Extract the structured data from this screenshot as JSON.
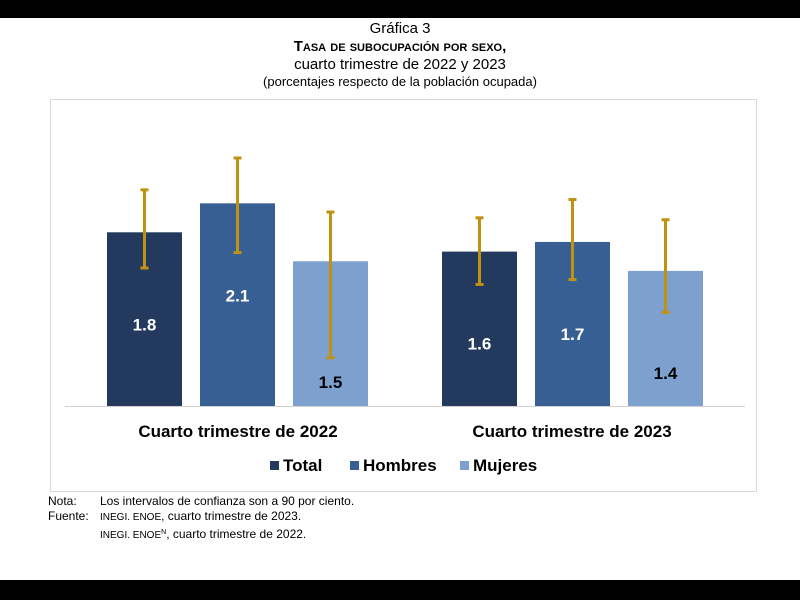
{
  "header": {
    "figure_label": "Gráfica 3",
    "title": "Tasa de subocupación por sexo,",
    "subtitle": "cuarto trimestre de 2022 y 2023",
    "units": "(porcentajes respecto de la población ocupada)"
  },
  "colors": {
    "total": "#233a5e",
    "hombres": "#375f93",
    "mujeres": "#7ea0cf",
    "error_bar": "#c09212",
    "label_light": "#ffffff",
    "label_dark": "#000000"
  },
  "chart_data": {
    "type": "bar",
    "title": "Tasa de subocupación por sexo, cuarto trimestre de 2022 y 2023",
    "subtitle": "(porcentajes respecto de la población ocupada)",
    "xlabel": "",
    "ylabel": "",
    "categories": [
      "Cuarto trimestre de 2022",
      "Cuarto trimestre de 2023"
    ],
    "series": [
      {
        "name": "Total",
        "values": [
          1.8,
          1.6
        ],
        "ci_low": [
          1.43,
          1.26
        ],
        "ci_high": [
          2.24,
          1.95
        ],
        "label_color": "light"
      },
      {
        "name": "Hombres",
        "values": [
          2.1,
          1.7
        ],
        "ci_low": [
          1.59,
          1.31
        ],
        "ci_high": [
          2.57,
          2.14
        ],
        "label_color": "light"
      },
      {
        "name": "Mujeres",
        "values": [
          1.5,
          1.4
        ],
        "ci_low": [
          0.5,
          0.97
        ],
        "ci_high": [
          2.01,
          1.93
        ],
        "label_color": "dark"
      }
    ],
    "ylim": [
      0,
      3.0
    ],
    "grid": false,
    "y_axis_visible": false,
    "legend": {
      "position": "bottom",
      "entries": [
        "Total",
        "Hombres",
        "Mujeres"
      ]
    },
    "error_bars": "Intervalos de confianza a 90 por ciento"
  },
  "notes": {
    "nota_label": "Nota:",
    "nota_text": "Los intervalos de confianza son a 90 por ciento.",
    "fuente_label": "Fuente:",
    "fuente_1_sc": "INEGI. ENOE",
    "fuente_1_rest": ", cuarto trimestre de 2023.",
    "fuente_2_sc": "INEGI. ENOE",
    "fuente_2_sup": "N",
    "fuente_2_rest": ", cuarto trimestre de 2022."
  }
}
